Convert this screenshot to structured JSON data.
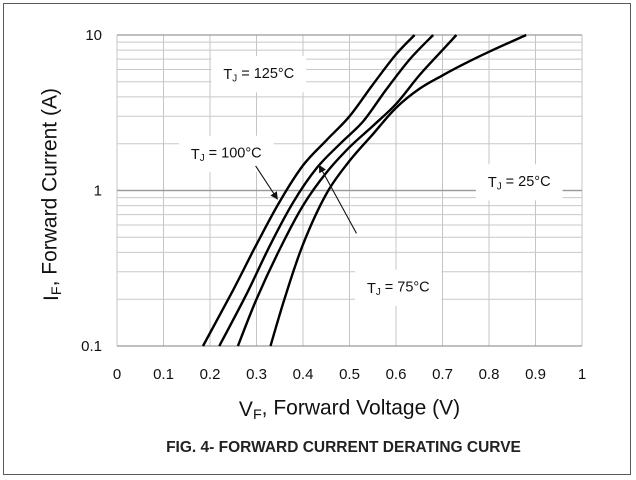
{
  "chart_data": {
    "type": "line",
    "title": "FIG. 4- FORWARD CURRENT DERATING CURVE",
    "xlabel": {
      "main": "V",
      "sub": "F",
      "rest": ", Forward Voltage (V)"
    },
    "ylabel": {
      "main": "I",
      "sub": "F",
      "rest": ", Forward Current (A)"
    },
    "xlim": [
      0,
      1
    ],
    "ylim": [
      0.1,
      10
    ],
    "yscale": "log",
    "grid": true,
    "x_ticks": [
      "0",
      "0.1",
      "0.2",
      "0.3",
      "0.4",
      "0.5",
      "0.6",
      "0.7",
      "0.8",
      "0.9",
      "1"
    ],
    "y_ticks": [
      {
        "value": 0.1,
        "label": "0.1"
      },
      {
        "value": 1,
        "label": "1"
      },
      {
        "value": 10,
        "label": "10"
      }
    ],
    "series": [
      {
        "name": {
          "main": "T",
          "sub": "J",
          "rest": " = 125°C"
        },
        "x": [
          0.185,
          0.25,
          0.3,
          0.35,
          0.4,
          0.45,
          0.5,
          0.55,
          0.6,
          0.64
        ],
        "y": [
          0.1,
          0.23,
          0.45,
          0.85,
          1.45,
          2.1,
          3.0,
          4.8,
          7.5,
          10
        ]
      },
      {
        "name": {
          "main": "T",
          "sub": "J",
          "rest": " = 100°C"
        },
        "x": [
          0.22,
          0.28,
          0.33,
          0.38,
          0.43,
          0.48,
          0.53,
          0.58,
          0.63,
          0.68
        ],
        "y": [
          0.1,
          0.22,
          0.45,
          0.85,
          1.4,
          2.0,
          2.8,
          4.5,
          7.0,
          10
        ]
      },
      {
        "name": {
          "main": "T",
          "sub": "J",
          "rest": " = 75°C"
        },
        "x": [
          0.26,
          0.3,
          0.35,
          0.4,
          0.45,
          0.5,
          0.55,
          0.6,
          0.65,
          0.7,
          0.73
        ],
        "y": [
          0.1,
          0.2,
          0.42,
          0.8,
          1.3,
          1.9,
          2.6,
          3.6,
          5.5,
          8.0,
          10
        ]
      },
      {
        "name": {
          "main": "T",
          "sub": "J",
          "rest": " = 25°C"
        },
        "x": [
          0.33,
          0.36,
          0.4,
          0.45,
          0.5,
          0.55,
          0.6,
          0.65,
          0.7,
          0.75,
          0.8,
          0.88
        ],
        "y": [
          0.1,
          0.2,
          0.45,
          0.95,
          1.55,
          2.3,
          3.4,
          4.5,
          5.5,
          6.6,
          7.8,
          10
        ]
      }
    ],
    "annotations": [
      {
        "series": 0,
        "label_pos": [
          0.305,
          5.2
        ]
      },
      {
        "series": 1,
        "label_pos": [
          0.235,
          1.6
        ],
        "arrow_to": [
          0.345,
          0.88
        ]
      },
      {
        "series": 2,
        "label_pos": [
          0.605,
          0.22
        ],
        "arrow_from": [
          0.515,
          0.53
        ],
        "arrow_to": [
          0.435,
          1.45
        ]
      },
      {
        "series": 3,
        "label_pos": [
          0.865,
          1.05
        ]
      }
    ]
  }
}
